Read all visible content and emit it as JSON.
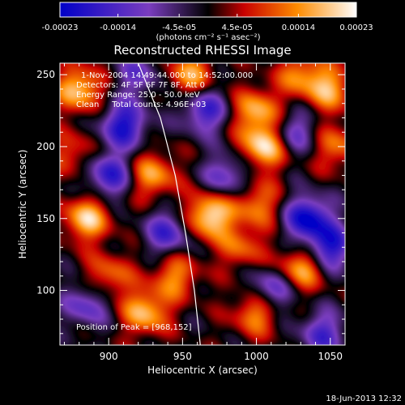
{
  "chart_data": {
    "type": "heatmap",
    "title": "Reconstructed RHESSI Image",
    "xlabel": "Heliocentric X (arcsec)",
    "ylabel": "Heliocentric Y (arcsec)",
    "xlim": [
      867,
      1060
    ],
    "ylim": [
      62,
      258
    ],
    "x_ticks": [
      900,
      950,
      1000,
      1050
    ],
    "y_ticks": [
      100,
      150,
      200,
      250
    ],
    "colorbar": {
      "range": [
        -0.00023,
        0.00023
      ],
      "tick_values": [
        -0.00023,
        -0.00014,
        -4.5e-05,
        4.5e-05,
        0.00014,
        0.00023
      ],
      "tick_labels": [
        "-0.00023",
        "-0.00014",
        "-4.5e-05",
        "4.5e-05",
        "0.00014",
        "0.00023"
      ],
      "units": "(photons cm⁻² s⁻¹ asec⁻²)",
      "colors": [
        "#0000c8",
        "#7a3dbf",
        "#000000",
        "#c80000",
        "#ff8c00",
        "#ffffff"
      ]
    },
    "annotations": [
      "1-Nov-2004 14:49:44.000 to 14:52:00.000",
      "Detectors: 4F 5F 6F 7F 8F, Att 0",
      "Energy Range: 25.0 - 50.0 keV",
      "Clean     Total counts: 4.96E+03",
      "Position of Peak = [968,152]"
    ],
    "peak": {
      "x": 968,
      "y": 152
    },
    "limb_line": [
      [
        920,
        258
      ],
      [
        935,
        220
      ],
      [
        945,
        180
      ],
      [
        952,
        140
      ],
      [
        958,
        100
      ],
      [
        962,
        62
      ]
    ],
    "blobs": [
      {
        "x": 968,
        "y": 152,
        "v": 1.0
      },
      {
        "x": 1005,
        "y": 200,
        "v": 0.95
      },
      {
        "x": 1000,
        "y": 225,
        "v": 0.75
      },
      {
        "x": 880,
        "y": 240,
        "v": 0.85
      },
      {
        "x": 955,
        "y": 250,
        "v": 0.7
      },
      {
        "x": 885,
        "y": 150,
        "v": 0.85
      },
      {
        "x": 930,
        "y": 180,
        "v": 0.7
      },
      {
        "x": 1050,
        "y": 240,
        "v": 0.7
      },
      {
        "x": 1055,
        "y": 200,
        "v": 0.55
      },
      {
        "x": 1000,
        "y": 160,
        "v": 0.6
      },
      {
        "x": 1030,
        "y": 115,
        "v": 0.75
      },
      {
        "x": 1000,
        "y": 85,
        "v": 0.7
      },
      {
        "x": 925,
        "y": 85,
        "v": 0.8
      },
      {
        "x": 945,
        "y": 110,
        "v": 0.6
      },
      {
        "x": 900,
        "y": 110,
        "v": 0.55
      },
      {
        "x": 1030,
        "y": 250,
        "v": 0.6
      },
      {
        "x": 875,
        "y": 195,
        "v": 0.45
      },
      {
        "x": 990,
        "y": 130,
        "v": 0.5
      },
      {
        "x": 910,
        "y": 215,
        "v": -0.9
      },
      {
        "x": 965,
        "y": 225,
        "v": -0.75
      },
      {
        "x": 1035,
        "y": 150,
        "v": -1.0
      },
      {
        "x": 1050,
        "y": 130,
        "v": -0.85
      },
      {
        "x": 1010,
        "y": 100,
        "v": -0.7
      },
      {
        "x": 940,
        "y": 140,
        "v": -0.7
      },
      {
        "x": 900,
        "y": 180,
        "v": -0.8
      },
      {
        "x": 980,
        "y": 180,
        "v": -0.6
      },
      {
        "x": 1045,
        "y": 70,
        "v": -0.65
      },
      {
        "x": 885,
        "y": 90,
        "v": -0.6
      },
      {
        "x": 1025,
        "y": 210,
        "v": -0.55
      },
      {
        "x": 920,
        "y": 250,
        "v": -0.5
      }
    ]
  },
  "footer": {
    "date": "18-Jun-2013 12:32"
  }
}
